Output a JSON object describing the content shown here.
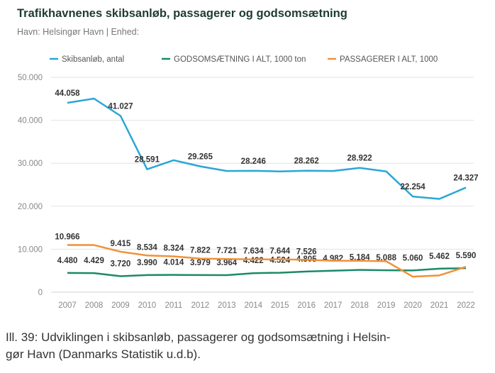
{
  "chart_data": {
    "type": "line",
    "title": "Trafikhavnenes skibsanløb, passagerer og godsomsætning",
    "subtitle": "Havn: Helsingør Havn | Enhed:",
    "x": [
      "2007",
      "2008",
      "2009",
      "2010",
      "2011",
      "2012",
      "2013",
      "2014",
      "2015",
      "2016",
      "2017",
      "2018",
      "2019",
      "2020",
      "2021",
      "2022"
    ],
    "ylim": [
      0,
      50000
    ],
    "yticks": [
      "0",
      "10.000",
      "20.000",
      "30.000",
      "40.000",
      "50.000"
    ],
    "grid": true,
    "legend_position": "top",
    "series": [
      {
        "name": "Skibsanløb, antal",
        "color": "#2aa6d6",
        "values": [
          44058,
          45050,
          41027,
          28591,
          30700,
          29265,
          28200,
          28246,
          28100,
          28262,
          28200,
          28922,
          28100,
          22254,
          21700,
          24327
        ],
        "labels": [
          "44.058",
          null,
          "41.027",
          "28.591",
          null,
          "29.265",
          null,
          "28.246",
          null,
          "28.262",
          null,
          "28.922",
          null,
          "22.254",
          null,
          "24.327"
        ]
      },
      {
        "name": "GODSOMSÆTNING I ALT, 1000 ton",
        "color": "#1b8a68",
        "values": [
          4480,
          4429,
          3720,
          3990,
          4014,
          3979,
          3964,
          4422,
          4524,
          4805,
          4982,
          5184,
          5088,
          5060,
          5462,
          5590
        ],
        "labels": [
          "4.480",
          "4.429",
          "3.720",
          "3.990",
          "4.014",
          "3.979",
          "3.964",
          "4.422",
          "4.524",
          "4.805",
          "4.982",
          "5.184",
          "5.088",
          "5.060",
          "5.462",
          "5.590"
        ]
      },
      {
        "name": "PASSAGERER I ALT, 1000",
        "color": "#f0913a",
        "values": [
          10966,
          10966,
          9415,
          8534,
          8324,
          7822,
          7721,
          7634,
          7644,
          7526,
          7300,
          7300,
          7200,
          3600,
          3900,
          5900
        ],
        "labels": [
          "10.966",
          null,
          "9.415",
          "8.534",
          "8.324",
          "7.822",
          "7.721",
          "7.634",
          "7.644",
          "7.526",
          null,
          null,
          null,
          null,
          null,
          null
        ]
      }
    ]
  },
  "caption": {
    "line1": "Ill. 39: Udviklingen i skibsanløb, passagerer og godsomsætning i Helsin-",
    "line2": "gør Havn (Danmarks Statistik u.d.b)."
  }
}
